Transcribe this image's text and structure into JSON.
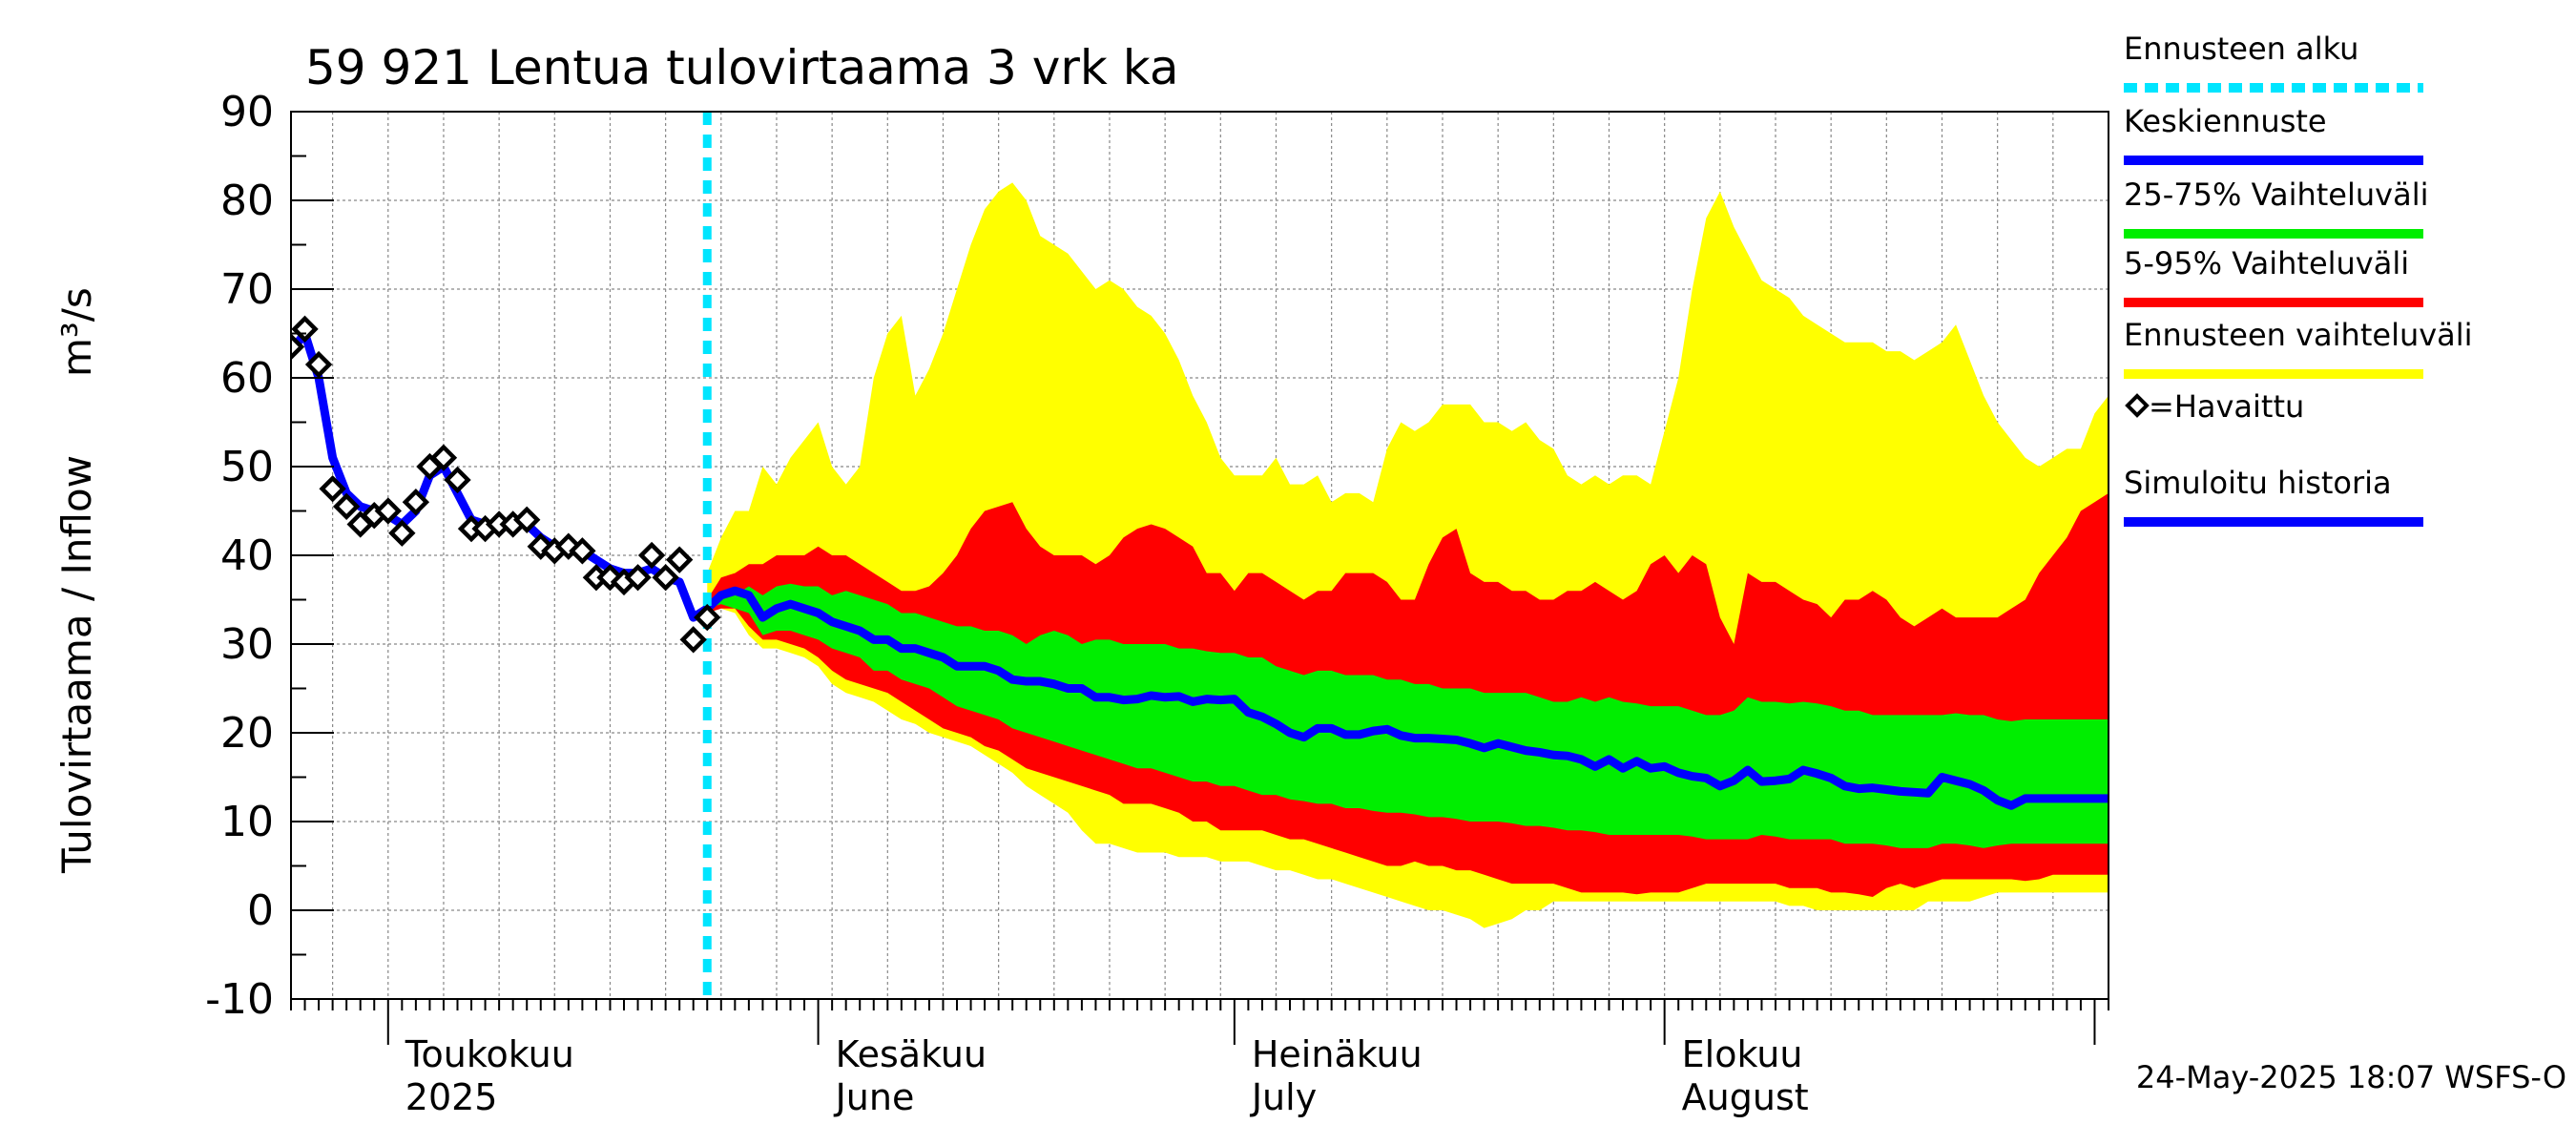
{
  "chart_data": {
    "type": "area",
    "title": "59 921 Lentua tulovirtaama 3 vrk ka",
    "ylabel": "Tulovirtaama / Inflow",
    "yunit": "m³/s",
    "ylim": [
      -10,
      90
    ],
    "yticks": [
      -10,
      0,
      10,
      20,
      30,
      40,
      50,
      60,
      70,
      80,
      90
    ],
    "xlim": [
      "2025-04-24",
      "2025-09-02"
    ],
    "grid": true,
    "legend_position": "right",
    "forecast_start": "2025-05-24",
    "month_labels": [
      {
        "date": "2025-05-01",
        "line1": "Toukokuu",
        "line2": "2025"
      },
      {
        "date": "2025-06-01",
        "line1": "Kesäkuu",
        "line2": "June"
      },
      {
        "date": "2025-07-01",
        "line1": "Heinäkuu",
        "line2": "July"
      },
      {
        "date": "2025-08-01",
        "line1": "Elokuu",
        "line2": "August"
      }
    ],
    "legend": [
      {
        "label": "Ennusteen alku",
        "color": "#00e5ff",
        "style": "dashed"
      },
      {
        "label": "Keskiennuste",
        "color": "#0000ff",
        "style": "solid"
      },
      {
        "label": "25-75% Vaihteluväli",
        "color": "#00ee00",
        "style": "solid"
      },
      {
        "label": "5-95% Vaihteluväli",
        "color": "#ff0000",
        "style": "solid"
      },
      {
        "label": "Ennusteen vaihteluväli",
        "color": "#ffff00",
        "style": "solid"
      },
      {
        "label": "=Havaittu",
        "color": "#000000",
        "style": "marker"
      },
      {
        "label": "Simuloitu historia",
        "color": "#0000ff",
        "style": "solid"
      }
    ],
    "observed": {
      "name": "Havaittu",
      "x": [
        "2025-04-24",
        "2025-04-25",
        "2025-04-26",
        "2025-04-27",
        "2025-04-28",
        "2025-04-29",
        "2025-04-30",
        "2025-05-01",
        "2025-05-02",
        "2025-05-03",
        "2025-05-04",
        "2025-05-05",
        "2025-05-06",
        "2025-05-07",
        "2025-05-08",
        "2025-05-09",
        "2025-05-10",
        "2025-05-11",
        "2025-05-12",
        "2025-05-13",
        "2025-05-14",
        "2025-05-15",
        "2025-05-16",
        "2025-05-17",
        "2025-05-18",
        "2025-05-19",
        "2025-05-20",
        "2025-05-21",
        "2025-05-22",
        "2025-05-23",
        "2025-05-24"
      ],
      "y": [
        63.5,
        65.5,
        61.5,
        47.5,
        45.5,
        43.5,
        44.5,
        45,
        42.5,
        46,
        50,
        51,
        48.5,
        43,
        43,
        43.5,
        43.5,
        44,
        41,
        40.5,
        41,
        40.5,
        37.5,
        37.5,
        37,
        37.5,
        40,
        37.5,
        39.5,
        30.5,
        33
      ]
    },
    "simulated_history": {
      "name": "Simuloitu historia",
      "x": [
        "2025-04-24",
        "2025-04-25",
        "2025-04-26",
        "2025-04-27",
        "2025-04-28",
        "2025-04-29",
        "2025-04-30",
        "2025-05-01",
        "2025-05-02",
        "2025-05-03",
        "2025-05-04",
        "2025-05-05",
        "2025-05-06",
        "2025-05-07",
        "2025-05-08",
        "2025-05-09",
        "2025-05-10",
        "2025-05-11",
        "2025-05-12",
        "2025-05-13",
        "2025-05-14",
        "2025-05-15",
        "2025-05-16",
        "2025-05-17",
        "2025-05-18",
        "2025-05-19",
        "2025-05-20",
        "2025-05-21",
        "2025-05-22",
        "2025-05-23",
        "2025-05-24"
      ],
      "y": [
        63,
        65,
        60,
        51,
        47,
        45.5,
        45,
        44.5,
        43.5,
        45,
        49,
        50,
        47,
        44,
        43.5,
        43,
        43.5,
        43.5,
        42,
        41,
        40.5,
        40.5,
        39.5,
        38.5,
        38,
        38,
        38.5,
        37.5,
        37,
        33,
        34
      ]
    },
    "forecast_x": [
      "2025-05-24",
      "2025-05-25",
      "2025-05-26",
      "2025-05-27",
      "2025-05-28",
      "2025-05-29",
      "2025-05-30",
      "2025-05-31",
      "2025-06-01",
      "2025-06-02",
      "2025-06-03",
      "2025-06-04",
      "2025-06-05",
      "2025-06-06",
      "2025-06-07",
      "2025-06-08",
      "2025-06-09",
      "2025-06-10",
      "2025-06-11",
      "2025-06-12",
      "2025-06-13",
      "2025-06-14",
      "2025-06-15",
      "2025-06-16",
      "2025-06-17",
      "2025-06-18",
      "2025-06-19",
      "2025-06-20",
      "2025-06-21",
      "2025-06-22",
      "2025-06-23",
      "2025-06-24",
      "2025-06-25",
      "2025-06-26",
      "2025-06-27",
      "2025-06-28",
      "2025-06-29",
      "2025-06-30",
      "2025-07-01",
      "2025-07-02",
      "2025-07-03",
      "2025-07-04",
      "2025-07-05",
      "2025-07-06",
      "2025-07-07",
      "2025-07-08",
      "2025-07-09",
      "2025-07-10",
      "2025-07-11",
      "2025-07-12",
      "2025-07-13",
      "2025-07-14",
      "2025-07-15",
      "2025-07-16",
      "2025-07-17",
      "2025-07-18",
      "2025-07-19",
      "2025-07-20",
      "2025-07-21",
      "2025-07-22",
      "2025-07-23",
      "2025-07-24",
      "2025-07-25",
      "2025-07-26",
      "2025-07-27",
      "2025-07-28",
      "2025-07-29",
      "2025-07-30",
      "2025-07-31",
      "2025-08-01",
      "2025-08-02",
      "2025-08-03",
      "2025-08-04",
      "2025-08-05",
      "2025-08-06",
      "2025-08-07",
      "2025-08-08",
      "2025-08-09",
      "2025-08-10",
      "2025-08-11",
      "2025-08-12",
      "2025-08-13",
      "2025-08-14",
      "2025-08-15",
      "2025-08-16",
      "2025-08-17",
      "2025-08-18",
      "2025-08-19",
      "2025-08-20",
      "2025-08-21",
      "2025-08-22",
      "2025-08-23",
      "2025-08-24",
      "2025-08-25",
      "2025-08-26",
      "2025-08-27",
      "2025-08-28",
      "2025-08-29",
      "2025-08-30",
      "2025-08-31",
      "2025-09-01",
      "2025-09-02"
    ],
    "forecast_mean": [
      34,
      35.5,
      36,
      35.5,
      33,
      34,
      34.5,
      34,
      33.5,
      32.5,
      32,
      31.5,
      30.5,
      30.5,
      29.5,
      29.5,
      29,
      28.5,
      27.5,
      27.5,
      27.5,
      27,
      26,
      25.8,
      25.8,
      25.5,
      25,
      25,
      24,
      24,
      23.7,
      23.8,
      24.2,
      24,
      24.1,
      23.5,
      23.8,
      23.7,
      23.8,
      22.3,
      21.8,
      21,
      20,
      19.5,
      20.5,
      20.5,
      19.8,
      19.8,
      20.2,
      20.4,
      19.7,
      19.4,
      19.4,
      19.3,
      19.2,
      18.8,
      18.3,
      18.8,
      18.4,
      18,
      17.8,
      17.5,
      17.4,
      17,
      16.2,
      17,
      16,
      16.8,
      16,
      16.2,
      15.5,
      15.1,
      14.9,
      14,
      14.6,
      15.8,
      14.5,
      14.6,
      14.8,
      15.8,
      15.4,
      14.9,
      14,
      13.7,
      13.8,
      13.6,
      13.4,
      13.3,
      13.2,
      15,
      14.6,
      14.2,
      13.5,
      12.4,
      11.8,
      12.6,
      12.6,
      12.6,
      12.6,
      12.6,
      12.6,
      12.6
    ],
    "band_25_75": {
      "lower": [
        34,
        34.5,
        34,
        33.5,
        31,
        31.5,
        31.5,
        31,
        30.5,
        29.5,
        29,
        28.5,
        27,
        27,
        26,
        25.5,
        25,
        24,
        23,
        22.5,
        22,
        21.5,
        20.5,
        20,
        19.5,
        19,
        18.5,
        18,
        17.5,
        17,
        16.5,
        16,
        16,
        15.5,
        15,
        14.5,
        14.5,
        14,
        14,
        13.5,
        13,
        13,
        12.5,
        12.3,
        12,
        12,
        11.5,
        11.5,
        11.2,
        11,
        11,
        10.8,
        10.5,
        10.5,
        10.3,
        10,
        10,
        10,
        9.8,
        9.5,
        9.5,
        9.3,
        9,
        9,
        8.8,
        8.5,
        8.5,
        8.5,
        8.5,
        8.5,
        8.5,
        8.3,
        8,
        8,
        8,
        8,
        8.5,
        8.3,
        8,
        8,
        8,
        8,
        7.5,
        7.5,
        7.5,
        7.3,
        7,
        7,
        7,
        7.5,
        7.5,
        7.3,
        7,
        7.3,
        7.5,
        7.5,
        7.5,
        7.5,
        7.5,
        7.5,
        7.5,
        7.5
      ],
      "upper": [
        34,
        35,
        35.5,
        36.5,
        35.5,
        36.5,
        36.8,
        36.5,
        36.5,
        35.5,
        36,
        35.5,
        35,
        34.5,
        33.5,
        33.5,
        33,
        32.5,
        32,
        32,
        31.5,
        31.5,
        31,
        30,
        31,
        31.5,
        31,
        30,
        30.5,
        30.5,
        30,
        30,
        30,
        30,
        29.5,
        29.5,
        29.2,
        29,
        29,
        28.5,
        28.5,
        27.5,
        27,
        26.5,
        27,
        27,
        26.5,
        26.5,
        26.5,
        26,
        26,
        25.5,
        25.5,
        25,
        25,
        25,
        24.5,
        24.5,
        24.5,
        24.5,
        24,
        23.5,
        23.5,
        24,
        23.5,
        24,
        23.5,
        23.3,
        23,
        23,
        23,
        22.5,
        22,
        22,
        22.5,
        24,
        23.5,
        23.5,
        23.3,
        23.5,
        23.3,
        23,
        22.5,
        22.5,
        22,
        22,
        22,
        22,
        22,
        22,
        22.2,
        22,
        22,
        21.5,
        21.3,
        21.5,
        21.5,
        21.5,
        21.5,
        21.5,
        21.5,
        21.5
      ]
    },
    "band_5_95": {
      "lower": [
        33.5,
        34,
        34,
        32,
        30.5,
        30.5,
        30,
        29.5,
        28.5,
        27,
        26,
        25.5,
        25,
        24.5,
        23.5,
        22.5,
        21.5,
        20.5,
        20,
        19.5,
        18.5,
        18,
        17,
        16,
        15.5,
        15,
        14.5,
        14,
        13.5,
        13,
        12,
        12,
        12,
        11.5,
        11,
        10,
        10,
        9,
        9,
        9,
        9,
        8.5,
        8,
        8,
        7.5,
        7,
        6.5,
        6,
        5.5,
        5,
        5,
        5.5,
        5,
        5,
        4.5,
        4.5,
        4,
        3.5,
        3,
        3,
        3,
        3,
        2.5,
        2,
        2,
        2,
        2,
        1.8,
        2,
        2,
        2,
        2.5,
        3,
        3,
        3,
        3,
        3,
        3,
        2.5,
        2.5,
        2.5,
        2,
        2,
        1.8,
        1.5,
        2.5,
        3,
        2.5,
        3,
        3.5,
        3.5,
        3.5,
        3.5,
        3.5,
        3.5,
        3.3,
        3.5,
        4,
        4,
        4,
        4,
        4
      ],
      "upper": [
        35,
        37.5,
        38,
        39,
        39,
        40,
        40,
        40,
        41,
        40,
        40,
        39,
        38,
        37,
        36,
        36,
        36.5,
        38,
        40,
        43,
        45,
        45.5,
        46,
        43,
        41,
        40,
        40,
        40,
        39,
        40,
        42,
        43,
        43.5,
        43,
        42,
        41,
        38,
        38,
        36,
        38,
        38,
        37,
        36,
        35,
        36,
        36,
        38,
        38,
        38,
        37,
        35,
        35,
        39,
        42,
        43,
        38,
        37,
        37,
        36,
        36,
        35,
        35,
        36,
        36,
        37,
        36,
        35,
        36,
        39,
        40,
        38,
        40,
        39,
        33,
        30,
        38,
        37,
        37,
        36,
        35,
        34.5,
        33,
        35,
        35,
        36,
        35,
        33,
        32,
        33,
        34,
        33,
        33,
        33,
        33,
        34,
        35,
        38,
        40,
        42,
        45,
        46,
        47
      ]
    },
    "band_min_max": {
      "lower": [
        33.5,
        34,
        33.5,
        31,
        29.5,
        29.5,
        29,
        28.5,
        27.5,
        25.5,
        24.5,
        24,
        23.5,
        22.5,
        21.5,
        21,
        20,
        19.5,
        19,
        18.5,
        17.5,
        16.5,
        15.5,
        14,
        13,
        12,
        11,
        9,
        7.5,
        7.5,
        7,
        6.5,
        6.5,
        6.5,
        6,
        6,
        6,
        5.5,
        5.5,
        5.5,
        5,
        4.5,
        4.5,
        4,
        3.5,
        3.5,
        3,
        2.5,
        2,
        1.5,
        1,
        0.5,
        0,
        0,
        -0.5,
        -1,
        -2,
        -1.5,
        -1,
        0,
        0,
        1,
        1,
        1,
        1,
        1,
        1,
        1,
        1,
        1,
        1,
        1,
        1,
        1,
        1,
        1,
        1,
        1,
        0.5,
        0.5,
        0,
        0,
        0,
        0,
        0,
        0,
        0,
        0,
        1,
        1,
        1,
        1,
        1.5,
        2,
        2,
        2,
        2,
        2,
        2,
        2,
        2,
        2
      ],
      "upper": [
        38,
        42,
        45,
        45,
        50,
        48,
        51,
        53,
        55,
        50,
        48,
        50,
        60,
        65,
        67,
        58,
        61,
        65,
        70,
        75,
        79,
        81,
        82,
        80,
        76,
        75,
        74,
        72,
        70,
        71,
        70,
        68,
        67,
        65,
        62,
        58,
        55,
        51,
        49,
        49,
        49,
        51,
        48,
        48,
        49,
        46,
        47,
        47,
        46,
        52,
        55,
        54,
        55,
        57,
        57,
        57,
        55,
        55,
        54,
        55,
        53,
        52,
        49,
        48,
        49,
        48,
        49,
        49,
        48,
        54,
        60,
        70,
        78,
        81,
        77,
        74,
        71,
        70,
        69,
        67,
        66,
        65,
        64,
        64,
        64,
        63,
        63,
        62,
        63,
        64,
        66,
        62,
        58,
        55,
        53,
        51,
        50,
        51,
        52,
        52,
        56,
        58
      ]
    }
  },
  "timestamp": "24-May-2025 18:07 WSFS-O"
}
